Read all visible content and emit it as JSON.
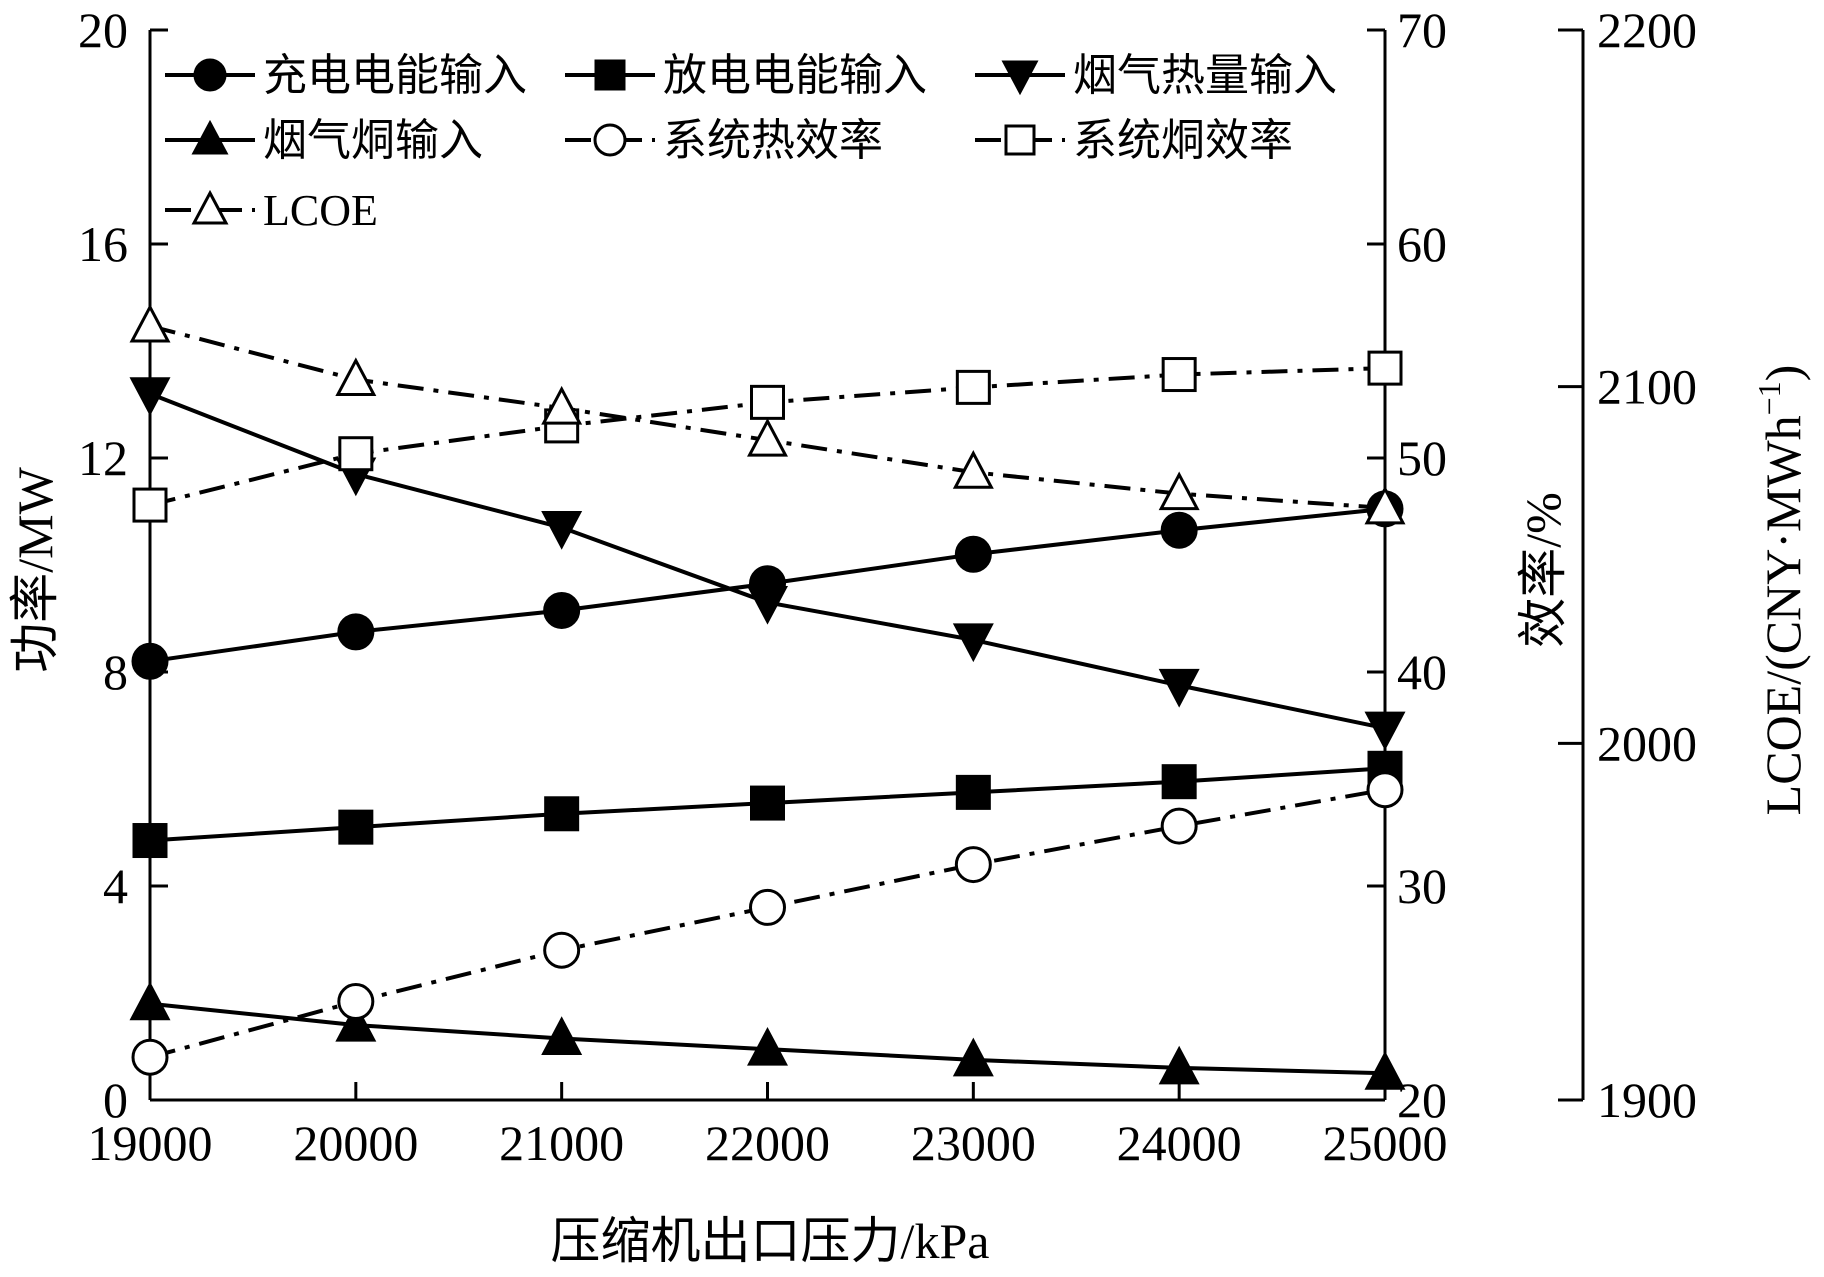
{
  "chart_data": {
    "type": "line",
    "x": [
      19000,
      20000,
      21000,
      22000,
      23000,
      24000,
      25000
    ],
    "xlabel": "压缩机出口压力/kPa",
    "xlim": [
      19000,
      25000
    ],
    "xticks": [
      "19000",
      "20000",
      "21000",
      "22000",
      "23000",
      "24000",
      "25000"
    ],
    "axes": {
      "left": {
        "label": "功率/MW",
        "lim": [
          0,
          20
        ],
        "ticks": [
          "0",
          "4",
          "8",
          "12",
          "16",
          "20"
        ]
      },
      "right1": {
        "label": "效率/%",
        "lim": [
          20,
          70
        ],
        "ticks": [
          "20",
          "30",
          "40",
          "50",
          "60",
          "70"
        ]
      },
      "right2": {
        "label": "LCOE/(CNY·MWh",
        "label_sup": "−1",
        "label_end": ")",
        "lim": [
          1900,
          2200
        ],
        "ticks": [
          "1900",
          "2000",
          "2100",
          "2200"
        ]
      }
    },
    "series": [
      {
        "name": "充电电能输入",
        "axis": "left",
        "marker": "circle-filled",
        "dash": "solid",
        "values": [
          8.2,
          8.75,
          9.15,
          9.65,
          10.2,
          10.65,
          11.05
        ]
      },
      {
        "name": "放电电能输入",
        "axis": "left",
        "marker": "square-filled",
        "dash": "solid",
        "values": [
          4.85,
          5.1,
          5.35,
          5.55,
          5.75,
          5.95,
          6.2
        ]
      },
      {
        "name": "烟气热量输入",
        "axis": "left",
        "marker": "triangle-down-filled",
        "dash": "solid",
        "values": [
          13.2,
          11.7,
          10.7,
          9.3,
          8.6,
          7.75,
          6.95
        ]
      },
      {
        "name": "烟气烔输入",
        "axis": "left",
        "marker": "triangle-up-filled",
        "dash": "solid",
        "values": [
          1.8,
          1.4,
          1.15,
          0.95,
          0.75,
          0.6,
          0.5
        ]
      },
      {
        "name": "系统热效率",
        "axis": "right1",
        "marker": "circle-open",
        "dash": "dashdot",
        "values": [
          22.0,
          24.6,
          27.0,
          29.0,
          31.0,
          32.8,
          34.5
        ]
      },
      {
        "name": "系统烔效率",
        "axis": "right1",
        "marker": "square-open",
        "dash": "dashdot",
        "values": [
          47.8,
          50.2,
          51.5,
          52.6,
          53.3,
          53.9,
          54.2
        ]
      },
      {
        "name": "LCOE",
        "axis": "right2",
        "marker": "triangle-up-open",
        "dash": "dashdot",
        "values": [
          2117,
          2102,
          2094,
          2085,
          2076,
          2070,
          2066
        ]
      }
    ],
    "legend": "top-left, three columns",
    "grid": false
  }
}
